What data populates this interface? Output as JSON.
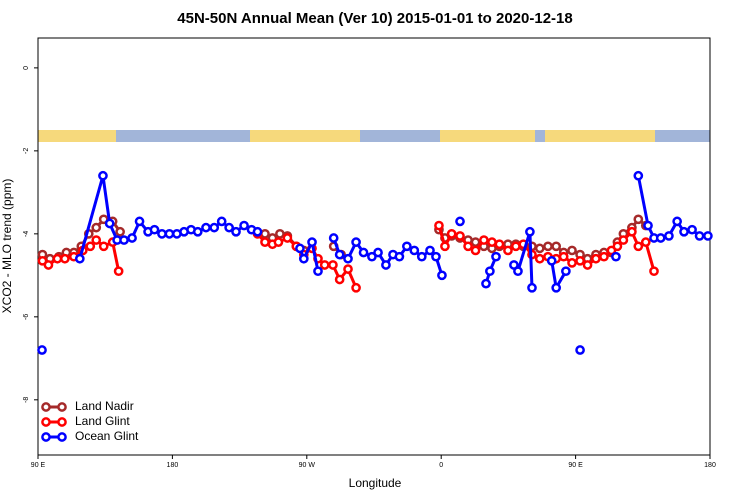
{
  "chart_data": {
    "type": "line",
    "title": "45N-50N Annual Mean (Ver 10)   2015-01-01 to 2020-12-18",
    "x_label": "Longitude",
    "y_label": "XCO2 - MLO trend (ppm)",
    "xlim": [
      90,
      540
    ],
    "ylim": [
      -9.33,
      0.72
    ],
    "xticks": [
      {
        "value": 90,
        "label": "90 E"
      },
      180,
      {
        "value": 270,
        "label": "90 W"
      },
      {
        "value": 360,
        "label": "0"
      },
      {
        "value": 450,
        "label": "90 E"
      },
      {
        "value": 540,
        "label": "180"
      }
    ],
    "yticks": [
      0,
      -2,
      -4,
      -6,
      -8
    ],
    "legend": "bottom-left",
    "series": [
      {
        "name": "Land Nadir",
        "color": "#a52a2a",
        "x": [
          93,
          98,
          104,
          109,
          114,
          119,
          124,
          129,
          134,
          140,
          145,
          null,
          242,
          247,
          252,
          257,
          263,
          268,
          null,
          288,
          293,
          null,
          358.5,
          362.5,
          367,
          372.6,
          378,
          383,
          388.6,
          394,
          399,
          404.7,
          410,
          415,
          420.8,
          426,
          431.5,
          437,
          442,
          447.6,
          453,
          458,
          463.6,
          469,
          474,
          478,
          482,
          487.7,
          492,
          497
        ],
        "values": [
          -4.5,
          -4.6,
          -4.55,
          -4.45,
          -4.45,
          -4.3,
          -4.0,
          -3.85,
          -3.65,
          -3.7,
          -3.95,
          null,
          -4.0,
          -4.1,
          -4.0,
          -4.05,
          -4.3,
          -4.4,
          null,
          -4.3,
          -4.5,
          null,
          -3.9,
          -4.1,
          -4.05,
          -4.1,
          -4.15,
          -4.2,
          -4.3,
          -4.35,
          -4.3,
          -4.25,
          -4.25,
          -4.3,
          -4.3,
          -4.35,
          -4.3,
          -4.3,
          -4.45,
          -4.4,
          -4.5,
          -4.6,
          -4.5,
          -4.45,
          -4.45,
          -4.2,
          -4.0,
          -3.85,
          -3.65,
          -3.8
        ]
      },
      {
        "name": "Land Glint",
        "color": "#ff0000",
        "x": [
          93,
          97,
          103,
          108,
          114,
          120,
          125,
          129,
          134,
          140,
          144,
          null,
          237,
          242,
          247,
          251,
          257,
          263,
          268,
          273.5,
          277.5,
          282,
          287.5,
          292,
          297.6,
          303,
          null,
          358.5,
          362.5,
          367,
          372.6,
          378,
          383,
          388.6,
          394,
          399,
          404.7,
          410,
          415,
          420.8,
          426,
          431.5,
          437,
          442,
          447.6,
          453,
          458,
          463.6,
          469,
          474,
          478,
          482,
          487.7,
          492,
          497,
          502.5
        ],
        "values": [
          -4.65,
          -4.75,
          -4.6,
          -4.6,
          -4.55,
          -4.4,
          -4.3,
          -4.15,
          -4.3,
          -4.2,
          -4.9,
          null,
          -4.0,
          -4.2,
          -4.25,
          -4.2,
          -4.1,
          -4.3,
          -4.5,
          -4.35,
          -4.6,
          -4.75,
          -4.75,
          -5.1,
          -4.85,
          -5.3,
          null,
          -3.8,
          -4.3,
          -4.0,
          -4.05,
          -4.3,
          -4.4,
          -4.15,
          -4.2,
          -4.25,
          -4.4,
          -4.3,
          -4.25,
          -4.5,
          -4.6,
          -4.55,
          -4.6,
          -4.55,
          -4.7,
          -4.65,
          -4.75,
          -4.6,
          -4.55,
          -4.4,
          -4.3,
          -4.15,
          -3.95,
          -4.3,
          -4.2,
          -4.9
        ]
      },
      {
        "name": "Ocean Glint",
        "color": "#0000ff",
        "x": [
          92.7,
          null,
          118,
          133.5,
          138,
          143,
          147.6,
          153,
          158,
          163.7,
          168,
          173,
          178,
          183,
          187.8,
          192.5,
          197,
          202.5,
          208,
          213,
          218,
          222.6,
          228,
          233,
          237,
          null,
          265.4,
          268,
          273.5,
          277.5,
          null,
          288,
          292,
          297.6,
          303,
          308,
          313.6,
          317.7,
          323,
          327.7,
          332,
          337,
          342,
          347,
          352.5,
          356.5,
          360.5,
          null,
          372.6,
          null,
          390,
          392.6,
          396.7,
          null,
          408.7,
          411.4,
          419.4,
          420.8,
          null,
          434,
          437,
          443.5,
          null,
          453,
          null,
          477,
          null,
          492,
          498.5,
          502.5,
          507,
          512.5,
          518,
          522.6,
          528,
          533,
          538.6
        ],
        "values": [
          -6.8,
          null,
          -4.6,
          -2.6,
          -3.75,
          -4.15,
          -4.15,
          -4.1,
          -3.7,
          -3.95,
          -3.9,
          -4.0,
          -4.0,
          -4.0,
          -3.95,
          -3.9,
          -3.95,
          -3.85,
          -3.85,
          -3.7,
          -3.85,
          -3.95,
          -3.8,
          -3.9,
          -3.95,
          null,
          -4.35,
          -4.6,
          -4.2,
          -4.9,
          null,
          -4.1,
          -4.5,
          -4.6,
          -4.2,
          -4.45,
          -4.55,
          -4.45,
          -4.75,
          -4.5,
          -4.55,
          -4.3,
          -4.4,
          -4.55,
          -4.4,
          -4.55,
          -5.0,
          null,
          -3.7,
          null,
          -5.2,
          -4.9,
          -4.55,
          null,
          -4.75,
          -4.9,
          -3.95,
          -5.3,
          null,
          -4.65,
          -5.3,
          -4.9,
          null,
          -6.8,
          null,
          -4.55,
          null,
          -2.6,
          -3.8,
          -4.1,
          -4.1,
          -4.05,
          -3.7,
          -3.95,
          -3.9,
          -4.05,
          -4.05
        ]
      }
    ]
  }
}
